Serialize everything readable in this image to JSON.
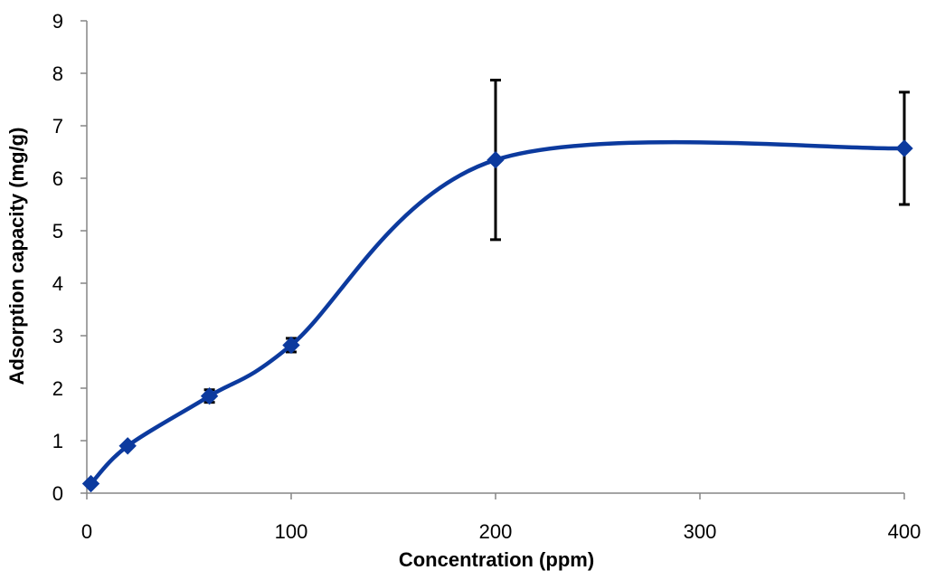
{
  "chart_data": {
    "type": "line",
    "title": "",
    "xlabel": "Concentration (ppm)",
    "ylabel": "Adsorption capacity (mg/g)",
    "ylim": [
      0,
      9
    ],
    "y_ticks": [
      "0",
      "1",
      "2",
      "3",
      "4",
      "5",
      "6",
      "7",
      "8",
      "9"
    ],
    "x_tick_labels": [
      "0",
      "100",
      "200",
      "300",
      "400"
    ],
    "x_axis_note": "categorical-style positions: ticks spaced evenly though labels jump from 300 to 400",
    "x": [
      2,
      20,
      60,
      100,
      200,
      400
    ],
    "series": [
      {
        "values": [
          0.18,
          0.9,
          1.85,
          2.82,
          6.35,
          6.57
        ],
        "error": [
          0.0,
          0.0,
          0.12,
          0.13,
          1.52,
          1.07
        ],
        "color": "#0c3a9e",
        "marker": "diamond",
        "smoothed": true
      }
    ],
    "grid": false,
    "legend": "none"
  }
}
